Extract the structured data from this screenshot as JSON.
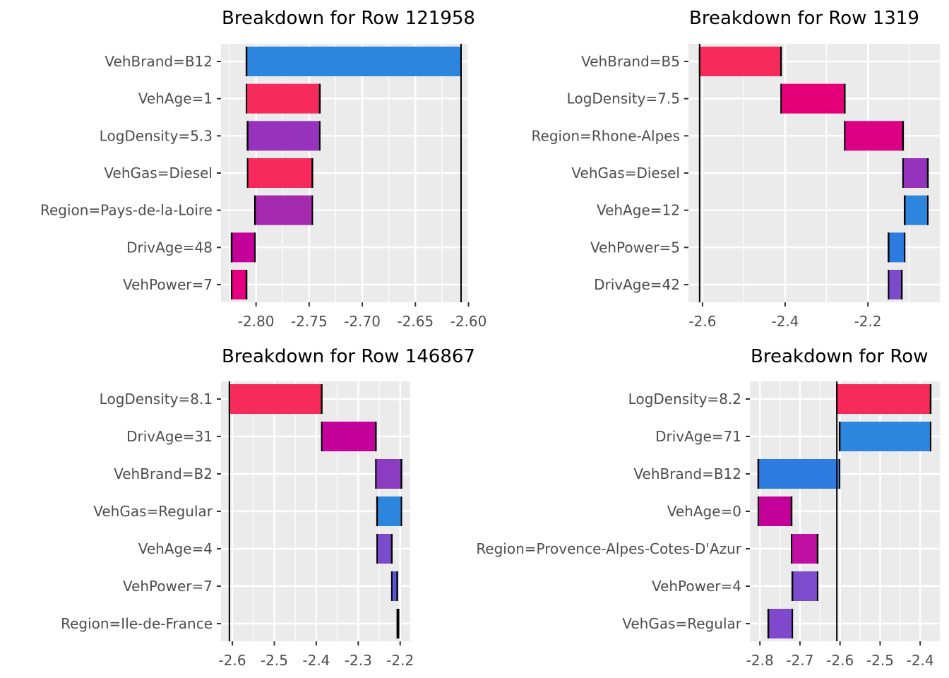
{
  "chart_data": [
    {
      "type": "bar",
      "orientation": "horizontal-waterfall",
      "title": "Breakdown for Row 121958",
      "xlim": [
        -2.833,
        -2.599
      ],
      "xticks": [
        -2.8,
        -2.75,
        -2.7,
        -2.65,
        -2.6
      ],
      "xtick_labels": [
        "-2.80",
        "-2.75",
        "-2.70",
        "-2.65",
        "-2.60"
      ],
      "reference_line": -2.607,
      "categories": [
        "VehBrand=B12",
        "VehAge=1",
        "LogDensity=5.3",
        "VehGas=Diesel",
        "Region=Pays-de-la-Loire",
        "DrivAge=48",
        "VehPower=7"
      ],
      "bars": [
        {
          "start": -2.607,
          "end": -2.809,
          "color": "#2d86de"
        },
        {
          "start": -2.809,
          "end": -2.74,
          "color": "#f72a5c"
        },
        {
          "start": -2.74,
          "end": -2.808,
          "color": "#9632bb"
        },
        {
          "start": -2.808,
          "end": -2.747,
          "color": "#f72a5c"
        },
        {
          "start": -2.747,
          "end": -2.801,
          "color": "#a62ab0"
        },
        {
          "start": -2.801,
          "end": -2.823,
          "color": "#c4009b"
        },
        {
          "start": -2.823,
          "end": -2.809,
          "color": "#e4007f"
        }
      ],
      "grid": true
    },
    {
      "type": "bar",
      "orientation": "horizontal-waterfall",
      "title": "Breakdown for Row 1319",
      "xlim": [
        -2.634,
        -2.026
      ],
      "xticks": [
        -2.6,
        -2.4,
        -2.2
      ],
      "xtick_labels": [
        "-2.6",
        "-2.4",
        "-2.2"
      ],
      "reference_line": -2.607,
      "categories": [
        "VehBrand=B5",
        "LogDensity=7.5",
        "Region=Rhone-Alpes",
        "VehGas=Diesel",
        "VehAge=12",
        "VehPower=5",
        "DrivAge=42"
      ],
      "bars": [
        {
          "start": -2.607,
          "end": -2.41,
          "color": "#f72a5c"
        },
        {
          "start": -2.41,
          "end": -2.256,
          "color": "#e5007a"
        },
        {
          "start": -2.256,
          "end": -2.115,
          "color": "#dc0085"
        },
        {
          "start": -2.115,
          "end": -2.055,
          "color": "#9533bc"
        },
        {
          "start": -2.055,
          "end": -2.111,
          "color": "#2d86de"
        },
        {
          "start": -2.111,
          "end": -2.15,
          "color": "#2c7be0"
        },
        {
          "start": -2.15,
          "end": -2.118,
          "color": "#7c4bcc"
        }
      ],
      "grid": true
    },
    {
      "type": "bar",
      "orientation": "horizontal-waterfall",
      "title": "Breakdown for Row 146867",
      "xlim": [
        -2.627,
        -2.176
      ],
      "xticks": [
        -2.6,
        -2.5,
        -2.4,
        -2.3,
        -2.2
      ],
      "xtick_labels": [
        "-2.6",
        "-2.5",
        "-2.4",
        "-2.3",
        "-2.2"
      ],
      "reference_line": -2.607,
      "categories": [
        "LogDensity=8.1",
        "DrivAge=31",
        "VehBrand=B2",
        "VehGas=Regular",
        "VehAge=4",
        "VehPower=7",
        "Region=Ile-de-France"
      ],
      "bars": [
        {
          "start": -2.607,
          "end": -2.387,
          "color": "#f72a5c"
        },
        {
          "start": -2.387,
          "end": -2.258,
          "color": "#c4009a"
        },
        {
          "start": -2.258,
          "end": -2.197,
          "color": "#8b3cc0"
        },
        {
          "start": -2.197,
          "end": -2.255,
          "color": "#2d86de"
        },
        {
          "start": -2.255,
          "end": -2.22,
          "color": "#7a4ccc"
        },
        {
          "start": -2.22,
          "end": -2.207,
          "color": "#5a55d6"
        },
        {
          "start": -2.207,
          "end": -2.204,
          "color": "#6d4fd0"
        }
      ],
      "grid": true
    },
    {
      "type": "bar",
      "orientation": "horizontal-waterfall",
      "title": "Breakdown for Row",
      "xlim": [
        -2.825,
        -2.351
      ],
      "xticks": [
        -2.8,
        -2.7,
        -2.6,
        -2.5,
        -2.4
      ],
      "xtick_labels": [
        "-2.8",
        "-2.7",
        "-2.6",
        "-2.5",
        "-2.4"
      ],
      "reference_line": -2.608,
      "categories": [
        "LogDensity=8.2",
        "DrivAge=71",
        "VehBrand=B12",
        "VehAge=0",
        "Region=Provence-Alpes-Cotes-D'Azur",
        "VehPower=4",
        "VehGas=Regular"
      ],
      "bars": [
        {
          "start": -2.608,
          "end": -2.374,
          "color": "#f72a5c"
        },
        {
          "start": -2.374,
          "end": -2.601,
          "color": "#2d86de"
        },
        {
          "start": -2.601,
          "end": -2.804,
          "color": "#2d7de0"
        },
        {
          "start": -2.804,
          "end": -2.721,
          "color": "#c4009b"
        },
        {
          "start": -2.721,
          "end": -2.656,
          "color": "#be10a0"
        },
        {
          "start": -2.656,
          "end": -2.719,
          "color": "#7c4ccc"
        },
        {
          "start": -2.719,
          "end": -2.779,
          "color": "#8048cc"
        }
      ],
      "grid": true
    }
  ],
  "style": {
    "panel_background": "#ebebeb",
    "grid_color": "#ffffff",
    "text_color": "#4d4d4d"
  }
}
